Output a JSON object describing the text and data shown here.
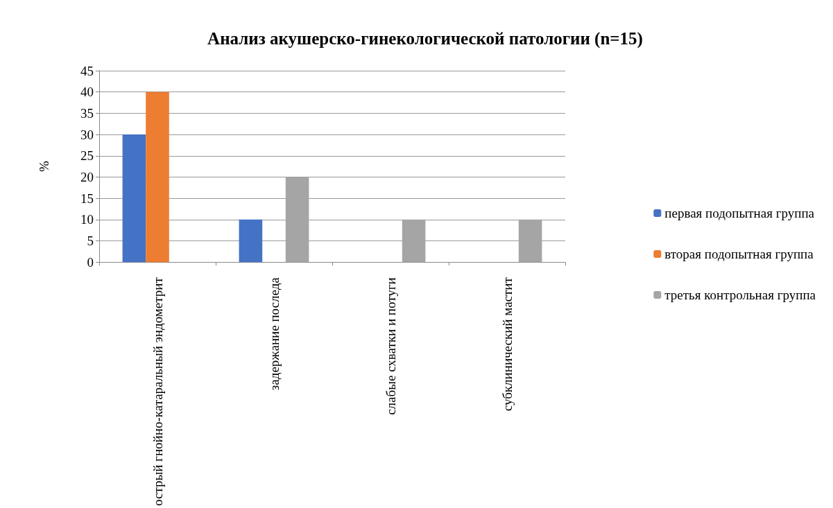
{
  "chart_data": {
    "type": "bar",
    "title": "Анализ акушерско-гинекологической патологии (n=15)",
    "ylabel": "%",
    "categories": [
      "острый гнойно-катаральный эндометрит",
      "задержание последа",
      "слабые схватки и потуги",
      "субклинический мастит"
    ],
    "series": [
      {
        "name": "первая подопытная группа",
        "color": "#4472c4",
        "values": [
          30,
          10,
          0,
          0
        ]
      },
      {
        "name": "вторая подопытная группа",
        "color": "#ed7d31",
        "values": [
          40,
          0,
          0,
          0
        ]
      },
      {
        "name": "третья контрольная группа",
        "color": "#a5a5a5",
        "values": [
          0,
          20,
          10,
          10
        ]
      }
    ],
    "ylim": [
      0,
      45
    ],
    "yticks": [
      0,
      5,
      10,
      15,
      20,
      25,
      30,
      35,
      40,
      45
    ],
    "grid": "y",
    "legend": "right"
  }
}
